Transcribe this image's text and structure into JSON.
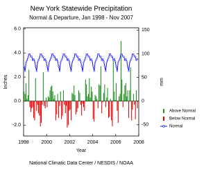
{
  "chart_data": {
    "type": "bar",
    "title": "New York Statewide Precipitation",
    "subtitle": "Normal & Departure, Jan 1998 - Nov 2007",
    "x_label": "Year",
    "y_label": "Inches",
    "y2_label": "mm",
    "source": "National Climatic Data Center / NESDIS / NOAA",
    "legend": "right",
    "xlim": [
      1998,
      2008
    ],
    "xticks": [
      1998,
      2000,
      2002,
      2004,
      2006,
      2008
    ],
    "ylim": [
      -2.9,
      6.1
    ],
    "yticks": [
      {
        "value": -2,
        "label": "-2.0"
      },
      {
        "value": 0,
        "label": "0.0"
      },
      {
        "value": 2,
        "label": "2.0"
      },
      {
        "value": 4,
        "label": "4.0"
      },
      {
        "value": 6,
        "label": "6.0"
      }
    ],
    "y2lim": [
      -73.7,
      154.9
    ],
    "y2ticks": [
      -50,
      0,
      50,
      100,
      150
    ],
    "x": [
      1998.04,
      1998.13,
      1998.21,
      1998.29,
      1998.38,
      1998.46,
      1998.54,
      1998.63,
      1998.71,
      1998.79,
      1998.88,
      1998.96,
      1999.04,
      1999.13,
      1999.21,
      1999.29,
      1999.38,
      1999.46,
      1999.54,
      1999.63,
      1999.71,
      1999.79,
      1999.88,
      1999.96,
      2000.04,
      2000.13,
      2000.21,
      2000.29,
      2000.38,
      2000.46,
      2000.54,
      2000.63,
      2000.71,
      2000.79,
      2000.88,
      2000.96,
      2001.04,
      2001.13,
      2001.21,
      2001.29,
      2001.38,
      2001.46,
      2001.54,
      2001.63,
      2001.71,
      2001.79,
      2001.88,
      2001.96,
      2002.04,
      2002.13,
      2002.21,
      2002.29,
      2002.38,
      2002.46,
      2002.54,
      2002.63,
      2002.71,
      2002.79,
      2002.88,
      2002.96,
      2003.04,
      2003.13,
      2003.21,
      2003.29,
      2003.38,
      2003.46,
      2003.54,
      2003.63,
      2003.71,
      2003.79,
      2003.88,
      2003.96,
      2004.04,
      2004.13,
      2004.21,
      2004.29,
      2004.38,
      2004.46,
      2004.54,
      2004.63,
      2004.71,
      2004.79,
      2004.88,
      2004.96,
      2005.04,
      2005.13,
      2005.21,
      2005.29,
      2005.38,
      2005.46,
      2005.54,
      2005.63,
      2005.71,
      2005.79,
      2005.88,
      2005.96,
      2006.04,
      2006.13,
      2006.21,
      2006.29,
      2006.38,
      2006.46,
      2006.54,
      2006.63,
      2006.71,
      2006.79,
      2006.88,
      2006.96,
      2007.04,
      2007.13,
      2007.21,
      2007.29,
      2007.38,
      2007.46,
      2007.54,
      2007.63,
      2007.71,
      2007.79,
      2007.88
    ],
    "series": [
      {
        "name": "Above Normal",
        "color": "#1a8c1a",
        "values": [
          0.8,
          0.6,
          1.5,
          0.2,
          0.5,
          2.6,
          null,
          null,
          null,
          null,
          null,
          null,
          1.9,
          null,
          null,
          null,
          null,
          null,
          null,
          null,
          2.4,
          null,
          null,
          0.3,
          null,
          0.4,
          0.3,
          0.9,
          1.2,
          1.3,
          0.8,
          0.2,
          0.5,
          null,
          null,
          0.6,
          null,
          null,
          0.8,
          null,
          null,
          0.9,
          null,
          null,
          null,
          null,
          null,
          null,
          null,
          null,
          0.7,
          0.6,
          1.3,
          0.5,
          null,
          null,
          null,
          0.9,
          0.7,
          null,
          null,
          null,
          null,
          null,
          1.8,
          1.4,
          0.4,
          0.6,
          1.9,
          0.3,
          1.2,
          0.8,
          null,
          null,
          0.5,
          0.4,
          0.2,
          null,
          1.4,
          1.3,
          2.9,
          null,
          null,
          0.7,
          1.4,
          null,
          0.3,
          1.1,
          null,
          null,
          0.2,
          null,
          null,
          3.4,
          0.8,
          0.1,
          1.5,
          null,
          null,
          0.4,
          0.6,
          5.0,
          1.8,
          null,
          0.6,
          1.3,
          1.5,
          0.4,
          0.9,
          null,
          0.9,
          2.8,
          null,
          null,
          0.6,
          null,
          null,
          0.9,
          null
        ]
      },
      {
        "name": "Below Normal",
        "color": "#e00000",
        "values": [
          null,
          null,
          null,
          null,
          null,
          null,
          -0.5,
          -0.9,
          -0.6,
          -0.5,
          -1.4,
          -1.6,
          null,
          -0.8,
          -0.3,
          -1.0,
          -1.2,
          -2.1,
          -1.8,
          -0.3,
          null,
          -0.4,
          -0.6,
          null,
          -0.5,
          null,
          null,
          null,
          null,
          null,
          null,
          null,
          null,
          -1.6,
          -1.1,
          null,
          -1.4,
          -0.4,
          null,
          -1.5,
          -1.2,
          null,
          -0.3,
          -1.0,
          -0.4,
          -2.2,
          -2.0,
          -0.8,
          -0.7,
          -1.6,
          null,
          null,
          null,
          null,
          -1.1,
          -0.9,
          -0.6,
          null,
          null,
          -0.3,
          -1.2,
          -0.2,
          -0.5,
          -0.8,
          null,
          null,
          null,
          null,
          null,
          null,
          null,
          null,
          -1.5,
          -1.7,
          null,
          null,
          null,
          -0.6,
          null,
          null,
          null,
          -1.0,
          -0.1,
          null,
          null,
          -0.5,
          null,
          null,
          -1.4,
          -1.3,
          null,
          -1.6,
          -2.1,
          null,
          null,
          null,
          null,
          -0.8,
          -1.8,
          null,
          null,
          null,
          null,
          -0.5,
          null,
          null,
          null,
          null,
          null,
          -1.4,
          null,
          null,
          -1.6,
          -0.7,
          null,
          -0.3,
          -1.5,
          null,
          -0.6
        ]
      },
      {
        "name": "Normal",
        "color": "#0000ff",
        "type": "line",
        "values": [
          2.9,
          2.5,
          3.2,
          3.4,
          3.6,
          3.9,
          3.9,
          3.7,
          3.7,
          3.4,
          3.5,
          3.3,
          2.9,
          2.5,
          3.2,
          3.4,
          3.6,
          3.9,
          3.9,
          3.7,
          3.7,
          3.4,
          3.5,
          3.3,
          2.9,
          2.5,
          3.2,
          3.4,
          3.6,
          3.9,
          3.9,
          3.7,
          3.7,
          3.4,
          3.5,
          3.3,
          2.9,
          2.5,
          3.2,
          3.4,
          3.6,
          3.9,
          3.9,
          3.7,
          3.7,
          3.4,
          3.5,
          3.3,
          2.9,
          2.5,
          3.2,
          3.4,
          3.6,
          3.9,
          3.9,
          3.7,
          3.7,
          3.4,
          3.5,
          3.3,
          2.9,
          2.5,
          3.2,
          3.4,
          3.6,
          3.9,
          3.9,
          3.7,
          3.7,
          3.4,
          3.5,
          3.3,
          2.9,
          2.5,
          3.2,
          3.4,
          3.6,
          3.9,
          3.9,
          3.7,
          3.7,
          3.4,
          3.5,
          3.3,
          2.9,
          2.5,
          3.2,
          3.4,
          3.6,
          3.9,
          3.9,
          3.7,
          3.7,
          3.4,
          3.5,
          3.3,
          2.9,
          2.5,
          3.2,
          3.4,
          3.6,
          3.9,
          3.9,
          3.7,
          3.7,
          3.4,
          3.5,
          3.3,
          2.9,
          2.5,
          3.2,
          3.4,
          3.6,
          3.9,
          3.9,
          3.7,
          3.7,
          3.4,
          3.5
        ]
      }
    ]
  }
}
